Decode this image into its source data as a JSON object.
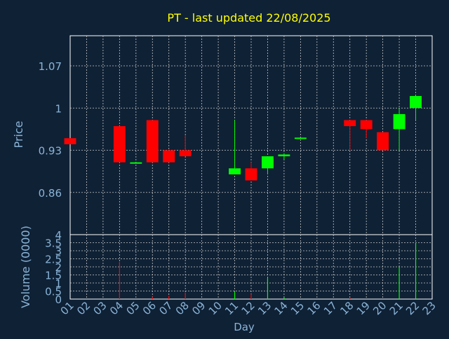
{
  "colors": {
    "background": "#0f2135",
    "grid": "#c8c8c8",
    "axis_text": "#8ab4d8",
    "title": "#ffff00",
    "up": "#00ff00",
    "down": "#ff0000",
    "frame": "#ffffff"
  },
  "chart_data": [
    {
      "type": "candlestick",
      "title": "PT - last updated 22/08/2025",
      "xlabel": "Day",
      "ylabel": "Price",
      "x_ticks": [
        "01",
        "02",
        "03",
        "04",
        "05",
        "06",
        "07",
        "08",
        "09",
        "10",
        "11",
        "12",
        "13",
        "14",
        "15",
        "16",
        "17",
        "18",
        "19",
        "20",
        "21",
        "22",
        "23"
      ],
      "y_ticks": [
        0.86,
        0.93,
        1,
        1.07
      ],
      "y_tick_labels": [
        "0.86",
        "0.93",
        "1",
        "1.07"
      ],
      "ylim": [
        0.79,
        1.12
      ],
      "grid": true,
      "candles": [
        {
          "day": 1,
          "open": 0.95,
          "close": 0.94,
          "high": 0.95,
          "low": 0.94
        },
        {
          "day": 4,
          "open": 0.97,
          "close": 0.91,
          "high": 0.97,
          "low": 0.91
        },
        {
          "day": 5,
          "open": 0.91,
          "close": 0.91,
          "high": 0.91,
          "low": 0.91
        },
        {
          "day": 6,
          "open": 0.98,
          "close": 0.91,
          "high": 0.98,
          "low": 0.91
        },
        {
          "day": 7,
          "open": 0.93,
          "close": 0.91,
          "high": 0.93,
          "low": 0.91
        },
        {
          "day": 8,
          "open": 0.93,
          "close": 0.92,
          "high": 0.955,
          "low": 0.92
        },
        {
          "day": 11,
          "open": 0.89,
          "close": 0.9,
          "high": 0.98,
          "low": 0.89
        },
        {
          "day": 12,
          "open": 0.9,
          "close": 0.88,
          "high": 0.91,
          "low": 0.88
        },
        {
          "day": 13,
          "open": 0.9,
          "close": 0.92,
          "high": 0.92,
          "low": 0.89
        },
        {
          "day": 14,
          "open": 0.92,
          "close": 0.923,
          "high": 0.925,
          "low": 0.915
        },
        {
          "day": 15,
          "open": 0.95,
          "close": 0.951,
          "high": 0.951,
          "low": 0.95
        },
        {
          "day": 18,
          "open": 0.98,
          "close": 0.97,
          "high": 0.98,
          "low": 0.93
        },
        {
          "day": 19,
          "open": 0.98,
          "close": 0.965,
          "high": 0.98,
          "low": 0.95
        },
        {
          "day": 20,
          "open": 0.96,
          "close": 0.93,
          "high": 0.96,
          "low": 0.93
        },
        {
          "day": 21,
          "open": 0.965,
          "close": 0.99,
          "high": 1.0,
          "low": 0.93
        },
        {
          "day": 22,
          "open": 1.0,
          "close": 1.02,
          "high": 1.02,
          "low": 0.98
        }
      ]
    },
    {
      "type": "bar",
      "ylabel": "Volume (0000)",
      "xlabel": "Day",
      "y_ticks": [
        0,
        0.5,
        1,
        1.5,
        2,
        2.5,
        3,
        3.5,
        4
      ],
      "y_tick_labels": [
        "0",
        "0.5",
        "1",
        "1.5",
        "2",
        "2.5",
        "3",
        "3.5",
        "4"
      ],
      "ylim": [
        0,
        4
      ],
      "grid": true,
      "bars": [
        {
          "day": 4,
          "value": 2.3,
          "direction": "down"
        },
        {
          "day": 6,
          "value": 0.15,
          "direction": "down"
        },
        {
          "day": 7,
          "value": 0.2,
          "direction": "down"
        },
        {
          "day": 8,
          "value": 0.4,
          "direction": "down"
        },
        {
          "day": 11,
          "value": 0.45,
          "direction": "up"
        },
        {
          "day": 12,
          "value": 0.3,
          "direction": "down"
        },
        {
          "day": 13,
          "value": 1.3,
          "direction": "up"
        },
        {
          "day": 14,
          "value": 0.1,
          "direction": "up"
        },
        {
          "day": 18,
          "value": 0.1,
          "direction": "down"
        },
        {
          "day": 21,
          "value": 2.0,
          "direction": "up"
        },
        {
          "day": 22,
          "value": 3.5,
          "direction": "up"
        }
      ]
    }
  ]
}
